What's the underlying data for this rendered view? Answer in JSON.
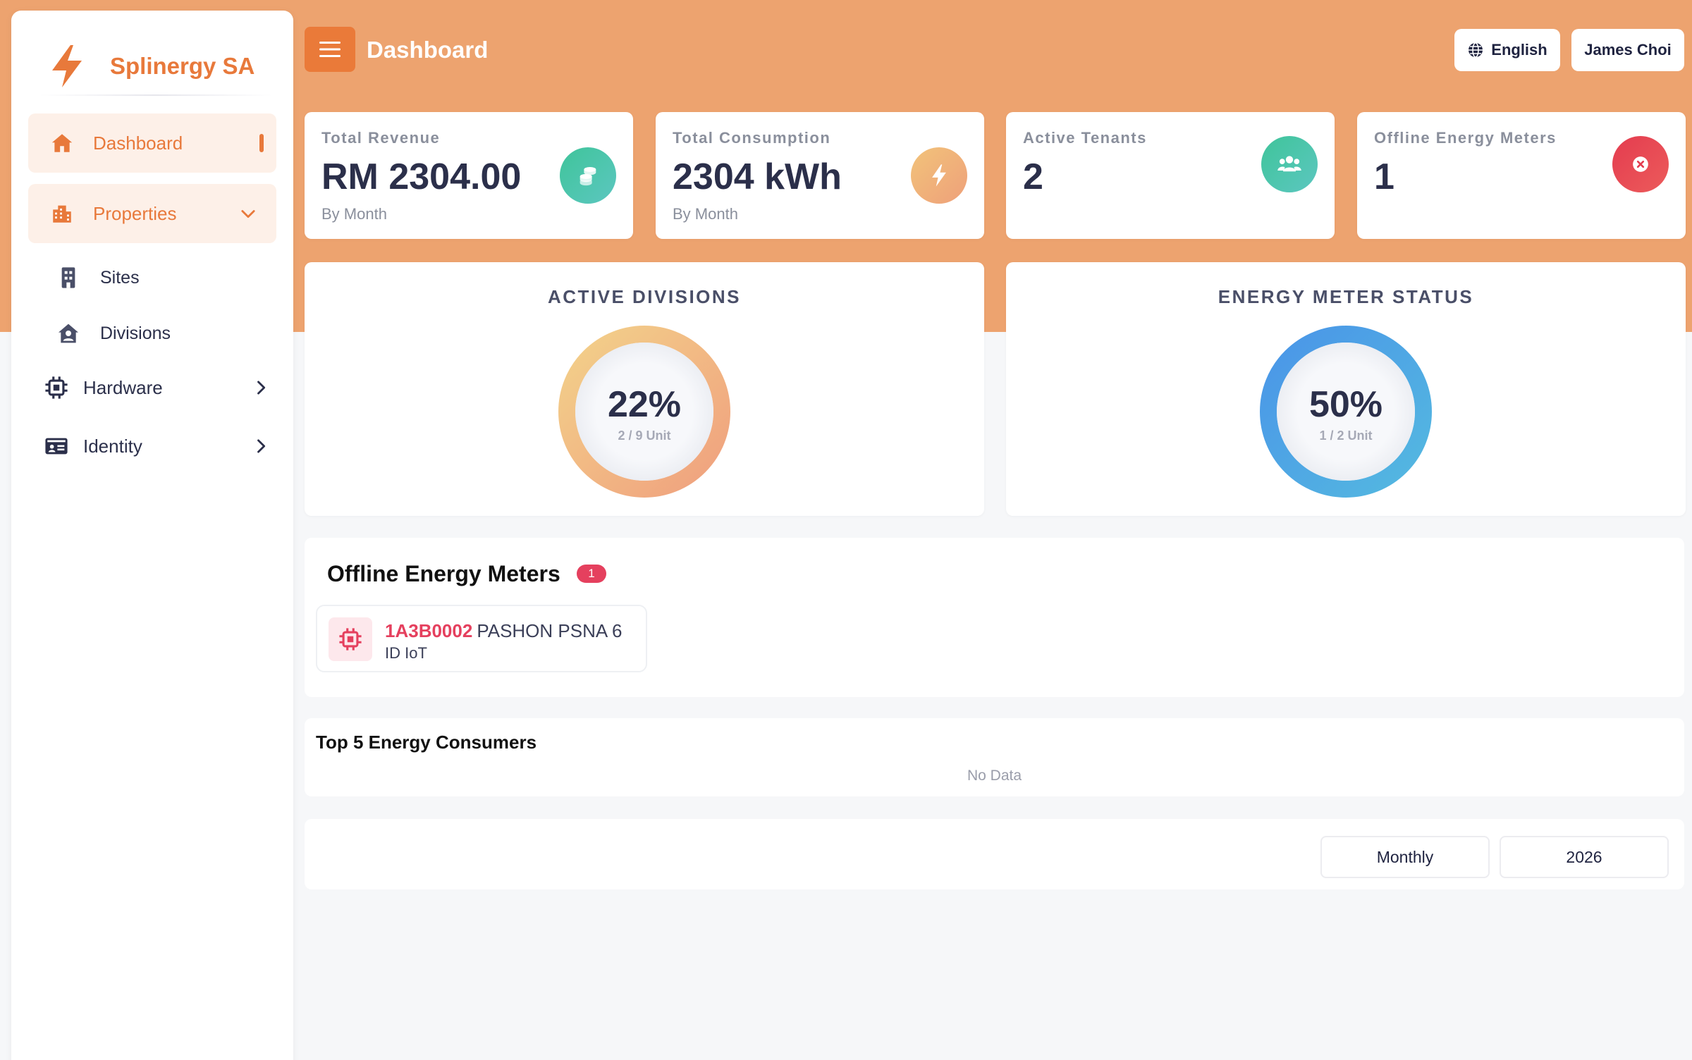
{
  "brand": {
    "name": "Splinergy SA",
    "accent": "#e8793b"
  },
  "sidebar": {
    "items": [
      {
        "label": "Dashboard",
        "icon": "home-icon"
      },
      {
        "label": "Properties",
        "icon": "building-icon"
      },
      {
        "label": "Sites",
        "icon": "office-building-icon"
      },
      {
        "label": "Divisions",
        "icon": "user-house-icon"
      },
      {
        "label": "Hardware",
        "icon": "chip-icon"
      },
      {
        "label": "Identity",
        "icon": "id-card-icon"
      }
    ]
  },
  "header": {
    "title": "Dashboard",
    "language": "English",
    "user": "James Choi"
  },
  "stats": [
    {
      "title": "Total Revenue",
      "value": "RM 2304.00",
      "sub": "By Month",
      "icon": "coins-icon"
    },
    {
      "title": "Total Consumption",
      "value": "2304 kWh",
      "sub": "By Month",
      "icon": "lightning-icon"
    },
    {
      "title": "Active Tenants",
      "value": "2",
      "icon": "users-icon"
    },
    {
      "title": "Offline Energy Meters",
      "value": "1",
      "icon": "close-circle-icon"
    }
  ],
  "donuts": [
    {
      "title": "ACTIVE DIVISIONS",
      "percent": "22%",
      "unit": "2 / 9 Unit",
      "fraction": 0.22
    },
    {
      "title": "ENERGY METER STATUS",
      "percent": "50%",
      "unit": "1 / 2 Unit",
      "fraction": 0.5
    }
  ],
  "offline": {
    "title": "Offline Energy Meters",
    "count": "1",
    "meters": [
      {
        "id": "1A3B0002",
        "name": "PASHON PSNA 6",
        "type": "ID IoT"
      }
    ]
  },
  "top5": {
    "title": "Top 5 Energy Consumers",
    "empty": "No Data"
  },
  "filters": {
    "period": "Monthly",
    "year": "2026"
  }
}
